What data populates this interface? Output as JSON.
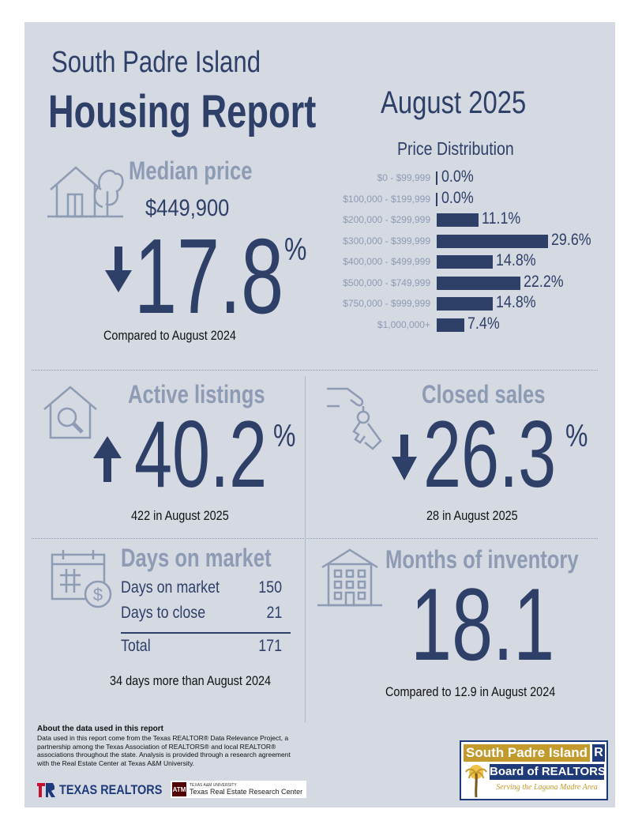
{
  "header": {
    "city": "South Padre Island",
    "title": "Housing Report",
    "month": "August 2025"
  },
  "median_price": {
    "heading": "Median price",
    "value": "$449,900",
    "change": "17.8",
    "percent_sign": "%",
    "direction": "down",
    "caption": "Compared to August 2024"
  },
  "price_distribution": {
    "title": "Price Distribution",
    "rows": [
      {
        "range": "$0 - $99,999",
        "label": "0.0%",
        "value": 0.0
      },
      {
        "range": "$100,000 - $199,999",
        "label": "0.0%",
        "value": 0.0
      },
      {
        "range": "$200,000 - $299,999",
        "label": "11.1%",
        "value": 11.1
      },
      {
        "range": "$300,000 - $399,999",
        "label": "29.6%",
        "value": 29.6
      },
      {
        "range": "$400,000 - $499,999",
        "label": "14.8%",
        "value": 14.8
      },
      {
        "range": "$500,000 - $749,999",
        "label": "22.2%",
        "value": 22.2
      },
      {
        "range": "$750,000 - $999,999",
        "label": "14.8%",
        "value": 14.8
      },
      {
        "range": "$1,000,000+",
        "label": "7.4%",
        "value": 7.4
      }
    ]
  },
  "active_listings": {
    "heading": "Active listings",
    "change": "40.2",
    "percent_sign": "%",
    "direction": "up",
    "caption": "422 in August 2025"
  },
  "closed_sales": {
    "heading": "Closed sales",
    "change": "26.3",
    "percent_sign": "%",
    "direction": "down",
    "caption": "28 in August 2025"
  },
  "days_on_market": {
    "heading": "Days on market",
    "rows": [
      {
        "label": "Days on market",
        "value": "150"
      },
      {
        "label": "Days to close",
        "value": "21"
      }
    ],
    "total_label": "Total",
    "total_value": "171",
    "caption": "34 days more than August 2024"
  },
  "months_inventory": {
    "heading": "Months of inventory",
    "value": "18.1",
    "caption": "Compared to 12.9 in August 2024"
  },
  "about": {
    "heading": "About the data used in this report",
    "body": "Data used in this report come from the Texas REALTOR® Data Relevance Project, a partnership among the Texas Association of REALTORS® and local REALTOR® associations throughout the state. Analysis is provided through a research agreement with the Real Estate Center at Texas A&M University."
  },
  "logos": {
    "texas_realtors": "TEXAS REALTORS",
    "tamu_small": "TEXAS A&M UNIVERSITY",
    "tamu_center": "Texas Real Estate Research Center",
    "board_line1": "South Padre Island",
    "board_line2": "Board of REALTORS",
    "board_tagline": "Serving the Laguna Madre Area",
    "board_r": "R"
  },
  "colors": {
    "navy": "#2e3f68",
    "muted": "#8e9bb4",
    "panel": "#d4d9e2",
    "gold": "#c39a2c"
  }
}
